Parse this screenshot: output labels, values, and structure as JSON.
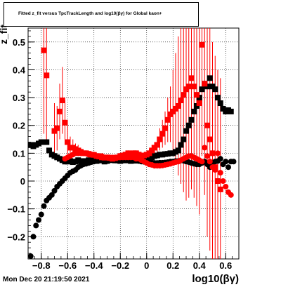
{
  "title": "Fitted  z_fit  versus TpcTrackLength and log10(βγ) for Global kaon+",
  "y_label": "z_fit",
  "x_label": "log10(βγ)",
  "footer": "Mon Dec 20 21:19:50 2021",
  "colors": {
    "black": "#000000",
    "red": "#ff0000"
  },
  "chart_data": {
    "type": "scatter",
    "title": "Fitted  z_fit  versus TpcTrackLength and log10(βγ) for Global kaon+",
    "xlabel": "log10(βγ)",
    "ylabel": "z_fit",
    "xlim": [
      -0.9,
      0.7
    ],
    "ylim": [
      -0.28,
      0.55
    ],
    "x_ticks": [
      -0.8,
      -0.6,
      -0.4,
      -0.2,
      0,
      0.2,
      0.4,
      0.6
    ],
    "x_tick_labels": [
      "−0.8",
      "−0.6",
      "−0.4",
      "−0.2",
      "0",
      "0.2",
      "0.4",
      "0.6"
    ],
    "y_ticks": [
      -0.2,
      -0.1,
      0,
      0.1,
      0.2,
      0.3,
      0.4,
      0.5
    ],
    "y_tick_labels": [
      "−0.2",
      "−0.1",
      "0",
      "0.1",
      "0.2",
      "0.3",
      "0.4",
      "0.5"
    ],
    "grid": true,
    "series": [
      {
        "color": "#000000",
        "marker": "square",
        "x": [
          -0.88,
          -0.86,
          -0.84,
          -0.82,
          -0.8,
          -0.78,
          -0.76,
          -0.74,
          -0.72,
          -0.7,
          -0.68,
          -0.66,
          -0.64,
          -0.62,
          -0.6,
          -0.58,
          -0.56,
          -0.54,
          -0.52,
          -0.5,
          -0.48,
          -0.46,
          -0.44,
          -0.42,
          -0.4,
          -0.38,
          -0.36,
          -0.34,
          -0.32,
          -0.3,
          -0.28,
          -0.26,
          -0.24,
          -0.22,
          -0.2,
          -0.18,
          -0.16,
          -0.14,
          -0.12,
          -0.1,
          -0.08,
          -0.06,
          -0.04,
          -0.02,
          0.0,
          0.02,
          0.04,
          0.06,
          0.08,
          0.1,
          0.12,
          0.14,
          0.16,
          0.18,
          0.2,
          0.22,
          0.24,
          0.26,
          0.28,
          0.3,
          0.32,
          0.34,
          0.36,
          0.38,
          0.4,
          0.42,
          0.44,
          0.46,
          0.48,
          0.5,
          0.52,
          0.54,
          0.56,
          0.58,
          0.6,
          0.62,
          0.64
        ],
        "y": [
          0.13,
          0.125,
          0.13,
          0.135,
          0.14,
          0.14,
          0.14,
          0.11,
          0.095,
          0.09,
          0.085,
          0.08,
          0.075,
          0.07,
          0.07,
          0.072,
          0.068,
          0.07,
          0.075,
          0.072,
          0.07,
          0.072,
          0.075,
          0.075,
          0.074,
          0.072,
          0.078,
          0.074,
          0.07,
          0.072,
          0.076,
          0.075,
          0.074,
          0.074,
          0.072,
          0.075,
          0.074,
          0.076,
          0.072,
          0.074,
          0.073,
          0.075,
          0.08,
          0.082,
          0.085,
          0.082,
          0.085,
          0.09,
          0.092,
          0.095,
          0.095,
          0.097,
          0.098,
          0.1,
          0.1,
          0.105,
          0.11,
          0.13,
          0.15,
          0.18,
          0.2,
          0.22,
          0.25,
          0.27,
          0.3,
          0.33,
          0.35,
          0.34,
          0.37,
          0.34,
          0.33,
          0.3,
          0.28,
          0.26,
          0.25,
          0.255,
          0.25
        ]
      },
      {
        "color": "#000000",
        "marker": "circle",
        "x": [
          -0.88,
          -0.86,
          -0.84,
          -0.82,
          -0.8,
          -0.78,
          -0.76,
          -0.74,
          -0.72,
          -0.7,
          -0.68,
          -0.66,
          -0.64,
          -0.62,
          -0.6,
          -0.58,
          -0.56,
          -0.54,
          -0.52,
          -0.5,
          -0.48,
          -0.46,
          -0.44,
          -0.42,
          -0.4,
          -0.38,
          -0.36,
          -0.34,
          -0.32,
          -0.3,
          -0.28,
          -0.26,
          -0.24,
          -0.22,
          -0.2,
          -0.18,
          -0.16,
          -0.14,
          -0.12,
          -0.1,
          -0.08,
          -0.06,
          -0.04,
          -0.02,
          0.0,
          0.02,
          0.04,
          0.06,
          0.08,
          0.1,
          0.12,
          0.14,
          0.16,
          0.18,
          0.2,
          0.22,
          0.24,
          0.26,
          0.28,
          0.3,
          0.32,
          0.34,
          0.36,
          0.38,
          0.4,
          0.42,
          0.44,
          0.46,
          0.48,
          0.5,
          0.52,
          0.54,
          0.56,
          0.58,
          0.6,
          0.62,
          0.64,
          0.66
        ],
        "y": [
          -0.27,
          -0.2,
          -0.16,
          -0.14,
          -0.12,
          -0.09,
          -0.07,
          -0.06,
          -0.05,
          -0.035,
          -0.02,
          -0.01,
          0.0,
          0.01,
          0.02,
          0.03,
          0.035,
          0.04,
          0.05,
          0.055,
          0.06,
          0.062,
          0.065,
          0.068,
          0.07,
          0.072,
          0.075,
          0.077,
          0.078,
          0.08,
          0.08,
          0.082,
          0.081,
          0.08,
          0.08,
          0.079,
          0.078,
          0.077,
          0.076,
          0.075,
          0.074,
          0.072,
          0.07,
          0.069,
          0.068,
          0.067,
          0.066,
          0.065,
          0.065,
          0.066,
          0.066,
          0.067,
          0.068,
          0.07,
          0.07,
          0.072,
          0.072,
          0.074,
          0.073,
          0.07,
          0.068,
          0.065,
          0.062,
          0.06,
          0.06,
          0.065,
          0.07,
          0.06,
          0.05,
          0.065,
          0.07,
          0.072,
          0.08,
          0.06,
          0.07,
          0.05,
          0.07,
          0.07
        ]
      },
      {
        "color": "#ff0000",
        "marker": "square",
        "x": [
          -0.88,
          -0.86,
          -0.84,
          -0.82,
          -0.8,
          -0.78,
          -0.76,
          -0.74,
          -0.72,
          -0.7,
          -0.68,
          -0.66,
          -0.64,
          -0.62,
          -0.6,
          -0.58,
          -0.56,
          -0.54,
          -0.52,
          -0.5,
          -0.48,
          -0.46,
          -0.44,
          -0.42,
          -0.4,
          -0.38,
          -0.36,
          -0.34,
          -0.32,
          -0.3,
          -0.28,
          -0.26,
          -0.24,
          -0.22,
          -0.2,
          -0.18,
          -0.16,
          -0.14,
          -0.12,
          -0.1,
          -0.08,
          -0.06,
          -0.04,
          -0.02,
          0.0,
          0.02,
          0.04,
          0.06,
          0.08,
          0.1,
          0.12,
          0.14,
          0.16,
          0.18,
          0.2,
          0.22,
          0.24,
          0.26,
          0.28,
          0.3,
          0.32,
          0.34,
          0.36,
          0.38,
          0.4,
          0.42,
          0.44,
          0.46,
          0.48,
          0.5,
          0.52,
          0.54,
          0.56,
          0.58,
          0.6,
          0.62,
          0.64
        ],
        "y": [
          null,
          null,
          null,
          null,
          null,
          0.47,
          0.38,
          null,
          null,
          0.18,
          0.19,
          0.25,
          0.29,
          0.21,
          0.14,
          0.12,
          0.12,
          0.115,
          0.11,
          0.105,
          0.1,
          0.1,
          0.098,
          0.095,
          0.094,
          0.09,
          0.088,
          0.085,
          0.084,
          0.085,
          0.083,
          0.08,
          0.082,
          0.085,
          0.09,
          0.092,
          0.095,
          0.1,
          0.098,
          0.1,
          0.1,
          0.095,
          0.09,
          0.092,
          0.095,
          0.1,
          0.11,
          0.12,
          0.13,
          0.15,
          0.17,
          0.19,
          0.22,
          0.24,
          0.25,
          0.26,
          0.27,
          0.29,
          0.31,
          0.33,
          0.34,
          0.37,
          0.34,
          0.31,
          0.28,
          0.49,
          0.35,
          0.2,
          0.15,
          0.1,
          0.05,
          0.0,
          -0.03,
          null,
          null,
          null,
          null
        ],
        "yerr": [
          0,
          0,
          0,
          0,
          0,
          0.3,
          0.25,
          0,
          0,
          0.1,
          0.08,
          0.1,
          0.12,
          0.08,
          0.06,
          0.04,
          0.03,
          0.02,
          0.02,
          0.015,
          0.01,
          0.01,
          0.01,
          0.01,
          0.01,
          0.01,
          0.01,
          0.01,
          0.01,
          0.01,
          0.01,
          0.01,
          0.01,
          0.01,
          0.01,
          0.01,
          0.01,
          0.01,
          0.01,
          0.01,
          0.01,
          0.01,
          0.01,
          0.01,
          0.01,
          0.015,
          0.02,
          0.02,
          0.03,
          0.04,
          0.05,
          0.06,
          0.08,
          0.1,
          0.15,
          0.2,
          0.25,
          0.3,
          0.35,
          0.4,
          0.4,
          0.4,
          0.4,
          0.4,
          0.4,
          0.4,
          0.4,
          0.4,
          0.4,
          0.4,
          0.4,
          0.4,
          0.4,
          0,
          0,
          0,
          0
        ]
      },
      {
        "color": "#ff0000",
        "marker": "circle",
        "x": [
          -0.62,
          -0.6,
          -0.58,
          -0.56,
          -0.54,
          -0.52,
          -0.5,
          -0.48,
          -0.46,
          -0.44,
          -0.42,
          -0.4,
          -0.38,
          -0.36,
          -0.34,
          -0.32,
          -0.3,
          -0.28,
          -0.26,
          -0.24,
          -0.22,
          -0.2,
          -0.18,
          -0.16,
          -0.14,
          -0.12,
          -0.1,
          -0.08,
          -0.06,
          -0.04,
          -0.02,
          0.0,
          0.02,
          0.04,
          0.06,
          0.08,
          0.1,
          0.12,
          0.14,
          0.16,
          0.18,
          0.2,
          0.22,
          0.24,
          0.26,
          0.28,
          0.3,
          0.32,
          0.34,
          0.36,
          0.38,
          0.4,
          0.42,
          0.44,
          0.46,
          0.48,
          0.5,
          0.52,
          0.54,
          0.56,
          0.58,
          0.6,
          0.62,
          0.64
        ],
        "y": [
          0.08,
          0.085,
          0.09,
          0.095,
          0.1,
          0.1,
          0.1,
          0.1,
          0.1,
          0.095,
          0.095,
          0.095,
          0.09,
          0.09,
          0.09,
          0.085,
          0.085,
          0.085,
          0.085,
          0.085,
          0.085,
          0.085,
          0.085,
          0.085,
          0.085,
          0.085,
          0.085,
          0.08,
          0.08,
          0.075,
          0.07,
          0.065,
          0.06,
          0.058,
          0.055,
          0.055,
          0.055,
          0.056,
          0.058,
          0.06,
          0.062,
          0.065,
          0.068,
          0.07,
          0.075,
          0.08,
          0.085,
          0.09,
          0.09,
          0.085,
          0.08,
          0.075,
          0.07,
          0.12,
          0.09,
          0.07,
          0.05,
          0.04,
          0.1,
          0.03,
          0.0,
          -0.02,
          -0.04,
          -0.05
        ]
      }
    ]
  }
}
